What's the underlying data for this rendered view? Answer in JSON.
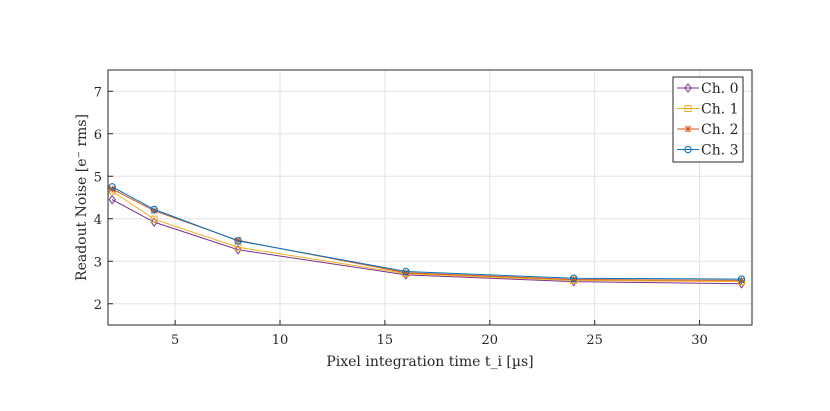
{
  "chart_data": {
    "type": "line",
    "xlabel": "Pixel integration time t_i [µs]",
    "ylabel": "Readout Noise [e⁻ rms]",
    "xlim": [
      1.8,
      32.5
    ],
    "ylim": [
      1.5,
      7.5
    ],
    "xticks": [
      5,
      10,
      15,
      20,
      25,
      30
    ],
    "yticks": [
      2,
      3,
      4,
      5,
      6,
      7
    ],
    "grid": true,
    "legend_position": "top-right",
    "x": [
      2,
      4,
      8,
      16,
      24,
      32
    ],
    "series": [
      {
        "name": "Ch. 0",
        "marker": "diamond",
        "color": "#7E2F8E",
        "values": [
          4.45,
          3.92,
          3.27,
          2.68,
          2.52,
          2.47
        ]
      },
      {
        "name": "Ch. 1",
        "marker": "square",
        "color": "#EDB120",
        "values": [
          4.65,
          3.99,
          3.33,
          2.71,
          2.55,
          2.52
        ]
      },
      {
        "name": "Ch. 2",
        "marker": "asterisk",
        "color": "#D95319",
        "values": [
          4.7,
          4.19,
          3.49,
          2.73,
          2.57,
          2.55
        ]
      },
      {
        "name": "Ch. 3",
        "marker": "circle",
        "color": "#0072BD",
        "values": [
          4.75,
          4.22,
          3.48,
          2.76,
          2.6,
          2.58
        ]
      }
    ]
  }
}
